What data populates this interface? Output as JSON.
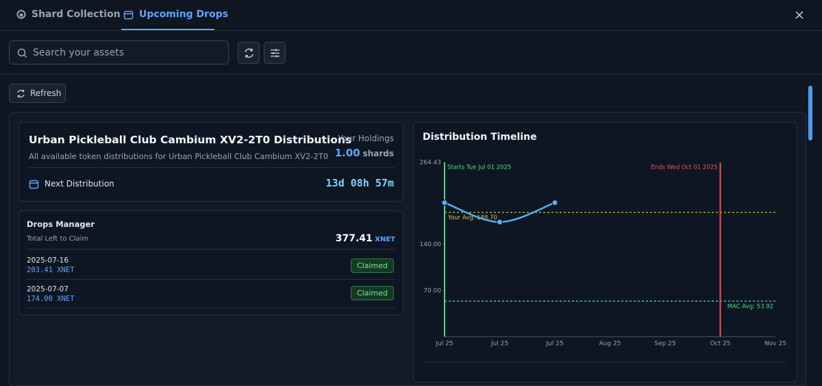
{
  "tabs": [
    "Shard Collection",
    "Upcoming Drops"
  ],
  "search_placeholder": "Search your assets",
  "refresh": "Refresh",
  "summary": {
    "title": "Urban Pickleball Club Cambium XV2-2T0 Distributions",
    "subtitle": "All available token distributions for Urban Pickleball Club Cambium XV2-2T0",
    "holdings_label": "Your Holdings",
    "holdings_value": "1.00",
    "holdings_unit": "shards",
    "next_label": "Next Distribution",
    "countdown": "13d 08h 57m"
  },
  "drops": {
    "title": "Drops Manager",
    "total_label": "Total Left to Claim",
    "total": "377.41",
    "unit": "XNET",
    "items": [
      {
        "date": "2025-07-16",
        "amount": "203.41 XNET",
        "status": "Claimed"
      },
      {
        "date": "2025-07-07",
        "amount": "174.00 XNET",
        "status": "Claimed"
      }
    ]
  },
  "chart_data": {
    "type": "line",
    "title": "Distribution Timeline",
    "categories": [
      "Jul 25",
      "Jul 25",
      "Jul 25",
      "Aug 25",
      "Sep 25",
      "Oct 25",
      "Nov 25"
    ],
    "series": [
      {
        "color": "#4fb3f0",
        "values": [
          203.41,
          174.0,
          203.41,
          null,
          null,
          null,
          null
        ]
      }
    ],
    "ylim": [
      0,
      264.43
    ],
    "yticks": [
      {
        "value": 70,
        "label": "70.00"
      },
      {
        "value": 140,
        "label": "140.00"
      },
      {
        "value": 264.43,
        "label": "264.43"
      }
    ],
    "reference_lines": [
      {
        "label": "Your Avg: 188.70",
        "value": 188.7,
        "color": "#d9b84a"
      },
      {
        "label": "MAC Avg: 53.92",
        "value": 53.92,
        "color": "#4ade80"
      }
    ],
    "markers": [
      {
        "label": "Starts Tue Jul 01 2025",
        "x": "Jul 25",
        "color": "#4ade80"
      },
      {
        "label": "Ends Wed Oct 01 2025",
        "x": "Oct 25",
        "color": "#ef5555"
      }
    ]
  }
}
